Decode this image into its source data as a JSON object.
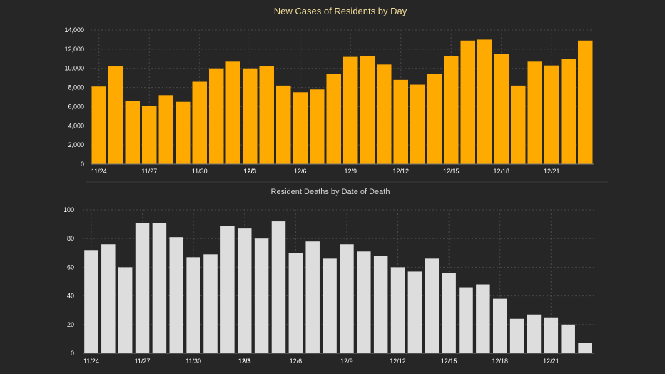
{
  "chart_data": [
    {
      "type": "bar",
      "title": "New Cases of Residents by Day",
      "color": "#ffaa00",
      "ylim": [
        0,
        14000
      ],
      "yticks": [
        0,
        2000,
        4000,
        6000,
        8000,
        10000,
        12000,
        14000
      ],
      "ytick_labels": [
        "0",
        "2,000",
        "4,000",
        "6,000",
        "8,000",
        "10,000",
        "12,000",
        "14,000"
      ],
      "grid": true,
      "x_tick_labels": [
        {
          "index": 0,
          "label": "11/24",
          "bold": false
        },
        {
          "index": 3,
          "label": "11/27",
          "bold": false
        },
        {
          "index": 6,
          "label": "11/30",
          "bold": false
        },
        {
          "index": 9,
          "label": "12/3",
          "bold": true
        },
        {
          "index": 12,
          "label": "12/6",
          "bold": false
        },
        {
          "index": 15,
          "label": "12/9",
          "bold": false
        },
        {
          "index": 18,
          "label": "12/12",
          "bold": false
        },
        {
          "index": 21,
          "label": "12/15",
          "bold": false
        },
        {
          "index": 24,
          "label": "12/18",
          "bold": false
        },
        {
          "index": 27,
          "label": "12/21",
          "bold": false
        }
      ],
      "values": [
        8100,
        10200,
        6600,
        6100,
        7200,
        6500,
        8600,
        10000,
        10700,
        10000,
        10200,
        8200,
        7500,
        7800,
        9400,
        11200,
        11300,
        10400,
        8800,
        8300,
        9400,
        11300,
        12900,
        13000,
        11500,
        8200,
        10700,
        10300,
        11000,
        12900
      ]
    },
    {
      "type": "bar",
      "title": "Resident Deaths by Date of Death",
      "color": "#dddddd",
      "ylim": [
        0,
        100
      ],
      "yticks": [
        0,
        20,
        40,
        60,
        80,
        100
      ],
      "ytick_labels": [
        "0",
        "20",
        "40",
        "60",
        "80",
        "100"
      ],
      "grid": true,
      "x_tick_labels": [
        {
          "index": 0,
          "label": "11/24",
          "bold": false
        },
        {
          "index": 3,
          "label": "11/27",
          "bold": false
        },
        {
          "index": 6,
          "label": "11/30",
          "bold": false
        },
        {
          "index": 9,
          "label": "12/3",
          "bold": true
        },
        {
          "index": 12,
          "label": "12/6",
          "bold": false
        },
        {
          "index": 15,
          "label": "12/9",
          "bold": false
        },
        {
          "index": 18,
          "label": "12/12",
          "bold": false
        },
        {
          "index": 21,
          "label": "12/15",
          "bold": false
        },
        {
          "index": 24,
          "label": "12/18",
          "bold": false
        },
        {
          "index": 27,
          "label": "12/21",
          "bold": false
        }
      ],
      "values": [
        72,
        76,
        60,
        91,
        91,
        81,
        67,
        69,
        89,
        87,
        80,
        92,
        70,
        78,
        66,
        76,
        71,
        68,
        60,
        57,
        66,
        56,
        46,
        48,
        38,
        24,
        27,
        25,
        20,
        7
      ]
    }
  ]
}
